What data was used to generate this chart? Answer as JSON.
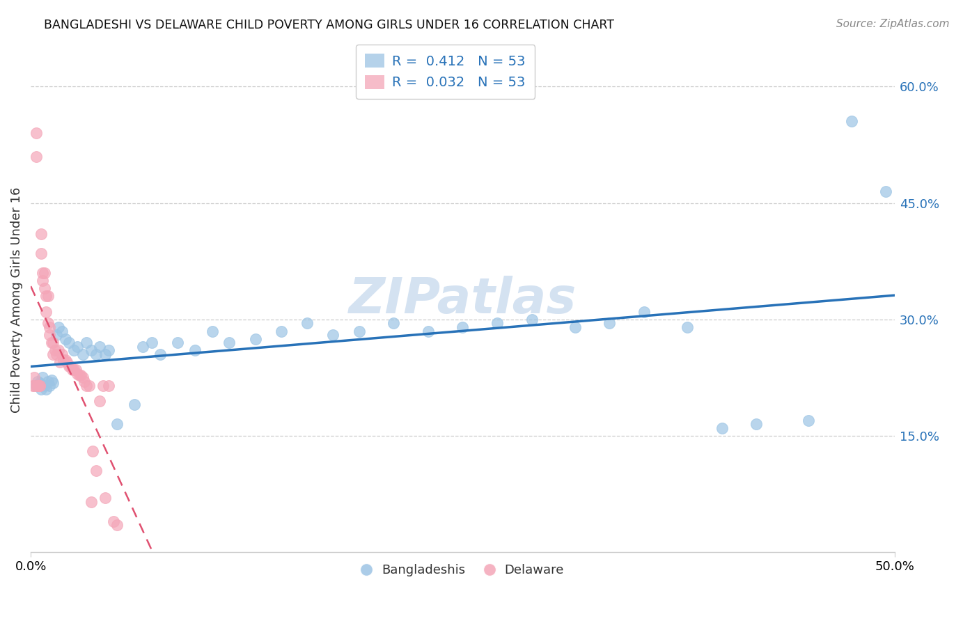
{
  "title": "BANGLADESHI VS DELAWARE CHILD POVERTY AMONG GIRLS UNDER 16 CORRELATION CHART",
  "source": "Source: ZipAtlas.com",
  "ylabel": "Child Poverty Among Girls Under 16",
  "y_tick_labels": [
    "15.0%",
    "30.0%",
    "45.0%",
    "60.0%"
  ],
  "y_tick_values": [
    0.15,
    0.3,
    0.45,
    0.6
  ],
  "xlim": [
    0.0,
    0.5
  ],
  "ylim": [
    0.0,
    0.65
  ],
  "blue_color": "#9cc4e4",
  "pink_color": "#f4a6b8",
  "blue_line_color": "#2872b8",
  "pink_line_color": "#e05070",
  "watermark": "ZIPatlas",
  "blue_R": 0.412,
  "pink_R": 0.032,
  "blue_scatter_x": [
    0.003,
    0.004,
    0.005,
    0.006,
    0.007,
    0.008,
    0.009,
    0.01,
    0.011,
    0.012,
    0.013,
    0.015,
    0.016,
    0.018,
    0.02,
    0.022,
    0.025,
    0.027,
    0.03,
    0.032,
    0.035,
    0.038,
    0.04,
    0.043,
    0.045,
    0.05,
    0.06,
    0.065,
    0.07,
    0.075,
    0.085,
    0.095,
    0.105,
    0.115,
    0.13,
    0.145,
    0.16,
    0.175,
    0.19,
    0.21,
    0.23,
    0.25,
    0.27,
    0.29,
    0.315,
    0.335,
    0.355,
    0.38,
    0.4,
    0.42,
    0.45,
    0.475,
    0.495
  ],
  "blue_scatter_y": [
    0.215,
    0.22,
    0.218,
    0.21,
    0.225,
    0.215,
    0.21,
    0.22,
    0.215,
    0.222,
    0.218,
    0.28,
    0.29,
    0.285,
    0.275,
    0.27,
    0.26,
    0.265,
    0.255,
    0.27,
    0.26,
    0.255,
    0.265,
    0.255,
    0.26,
    0.165,
    0.19,
    0.265,
    0.27,
    0.255,
    0.27,
    0.26,
    0.285,
    0.27,
    0.275,
    0.285,
    0.295,
    0.28,
    0.285,
    0.295,
    0.285,
    0.29,
    0.295,
    0.3,
    0.29,
    0.295,
    0.31,
    0.29,
    0.16,
    0.165,
    0.17,
    0.555,
    0.465
  ],
  "pink_scatter_x": [
    0.001,
    0.002,
    0.002,
    0.003,
    0.003,
    0.004,
    0.004,
    0.005,
    0.005,
    0.006,
    0.006,
    0.007,
    0.007,
    0.008,
    0.008,
    0.009,
    0.009,
    0.01,
    0.01,
    0.011,
    0.011,
    0.012,
    0.013,
    0.013,
    0.014,
    0.015,
    0.016,
    0.017,
    0.018,
    0.019,
    0.02,
    0.021,
    0.022,
    0.023,
    0.024,
    0.025,
    0.026,
    0.027,
    0.028,
    0.029,
    0.03,
    0.031,
    0.032,
    0.034,
    0.035,
    0.036,
    0.038,
    0.04,
    0.042,
    0.043,
    0.045,
    0.048,
    0.05
  ],
  "pink_scatter_y": [
    0.215,
    0.215,
    0.225,
    0.51,
    0.54,
    0.215,
    0.215,
    0.215,
    0.215,
    0.385,
    0.41,
    0.35,
    0.36,
    0.34,
    0.36,
    0.31,
    0.33,
    0.295,
    0.33,
    0.28,
    0.29,
    0.27,
    0.27,
    0.255,
    0.26,
    0.255,
    0.26,
    0.245,
    0.255,
    0.248,
    0.248,
    0.245,
    0.24,
    0.24,
    0.235,
    0.235,
    0.235,
    0.23,
    0.228,
    0.228,
    0.225,
    0.22,
    0.215,
    0.215,
    0.065,
    0.13,
    0.105,
    0.195,
    0.215,
    0.07,
    0.215,
    0.04,
    0.035
  ]
}
